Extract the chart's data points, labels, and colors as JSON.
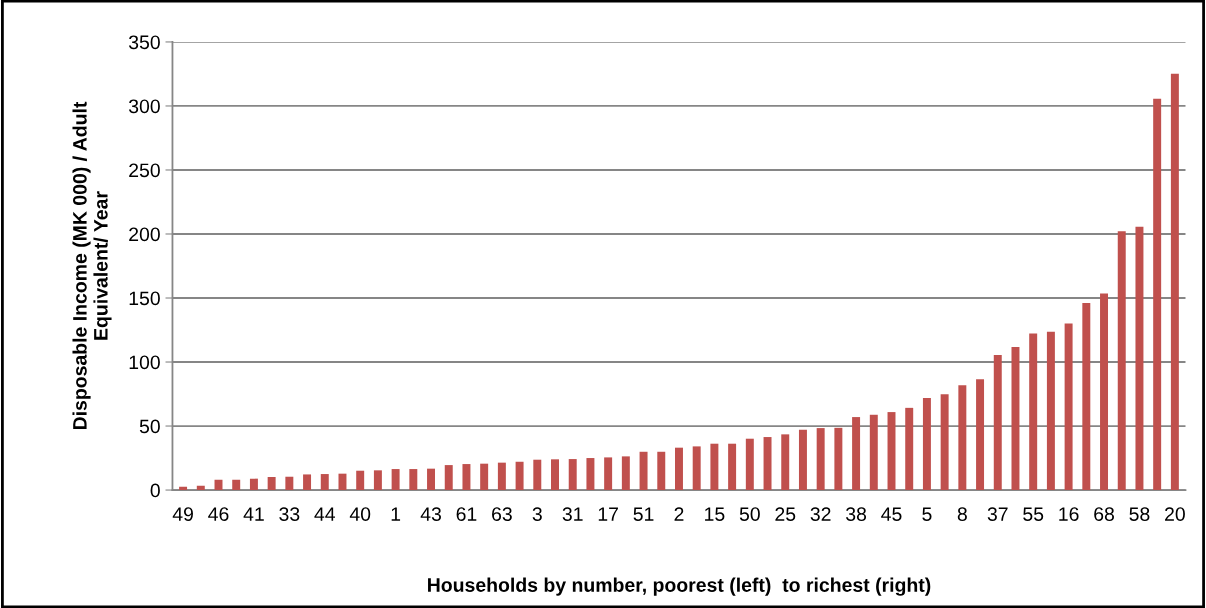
{
  "chart_data": {
    "type": "bar",
    "xlabel": "Households by number, poorest (left)  to richest (right)",
    "ylabel": "Disposable Income (MK 000) / Adult\nEquivalent/ Year",
    "categories": [
      "49",
      null,
      "46",
      null,
      "41",
      null,
      "33",
      null,
      "44",
      null,
      "40",
      null,
      "1",
      null,
      "43",
      null,
      "61",
      null,
      "63",
      null,
      "3",
      null,
      "31",
      null,
      "17",
      null,
      "51",
      null,
      "2",
      null,
      "15",
      null,
      "50",
      null,
      "25",
      null,
      "32",
      null,
      "38",
      null,
      "45",
      null,
      "5",
      null,
      "8",
      null,
      "37",
      null,
      "55",
      null,
      "16",
      null,
      "68",
      null,
      "58",
      null,
      "20"
    ],
    "values": [
      2.6,
      3.4,
      8.1,
      8.1,
      8.9,
      10.2,
      10.4,
      12.2,
      12.5,
      12.8,
      15.1,
      15.4,
      16.4,
      16.4,
      16.7,
      19.5,
      20.3,
      20.6,
      21.4,
      22.1,
      23.7,
      24.0,
      24.2,
      25.0,
      25.5,
      26.3,
      29.9,
      29.9,
      33.1,
      34.1,
      36.2,
      36.2,
      40.1,
      41.4,
      43.5,
      47.1,
      48.4,
      48.6,
      57.0,
      58.8,
      60.9,
      64.2,
      71.8,
      74.9,
      81.9,
      86.5,
      105.4,
      111.7,
      122.3,
      123.6,
      130.1,
      146.1,
      153.6,
      202.1,
      205.7,
      305.7,
      325.1
    ],
    "color": "#c0504d",
    "ylim": [
      0,
      350
    ],
    "yticks": [
      0,
      50,
      100,
      150,
      200,
      250,
      300,
      350
    ],
    "grid": "y",
    "legend": false
  }
}
